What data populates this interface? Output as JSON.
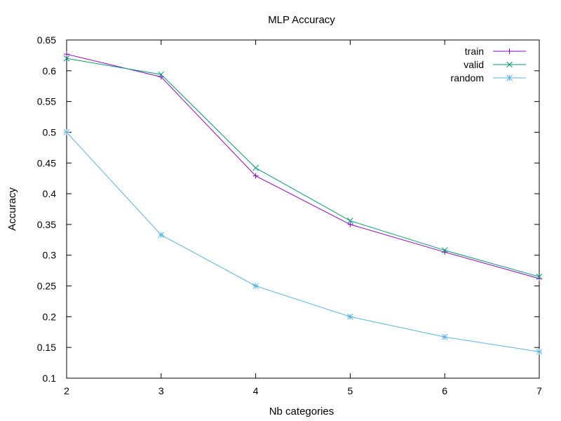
{
  "chart_data": {
    "type": "line",
    "title": "MLP Accuracy",
    "xlabel": "Nb categories",
    "ylabel": "Accuracy",
    "x": [
      2,
      3,
      4,
      5,
      6,
      7
    ],
    "xlim": [
      2,
      7
    ],
    "ylim": [
      0.1,
      0.65
    ],
    "xticks": [
      "2",
      "3",
      "4",
      "5",
      "6",
      "7"
    ],
    "yticks": [
      "0.1",
      "0.15",
      "0.2",
      "0.25",
      "0.3",
      "0.35",
      "0.4",
      "0.45",
      "0.5",
      "0.55",
      "0.6",
      "0.65"
    ],
    "grid": false,
    "legend_position": "top-right",
    "series": [
      {
        "name": "train",
        "color": "#9400d3",
        "marker": "plus",
        "values": [
          0.627,
          0.59,
          0.429,
          0.35,
          0.305,
          0.262
        ]
      },
      {
        "name": "valid",
        "color": "#009e73",
        "marker": "cross",
        "values": [
          0.62,
          0.594,
          0.442,
          0.356,
          0.308,
          0.265
        ]
      },
      {
        "name": "random",
        "color": "#56b4e9",
        "marker": "star",
        "values": [
          0.5,
          0.333,
          0.25,
          0.2,
          0.167,
          0.143
        ]
      }
    ]
  }
}
